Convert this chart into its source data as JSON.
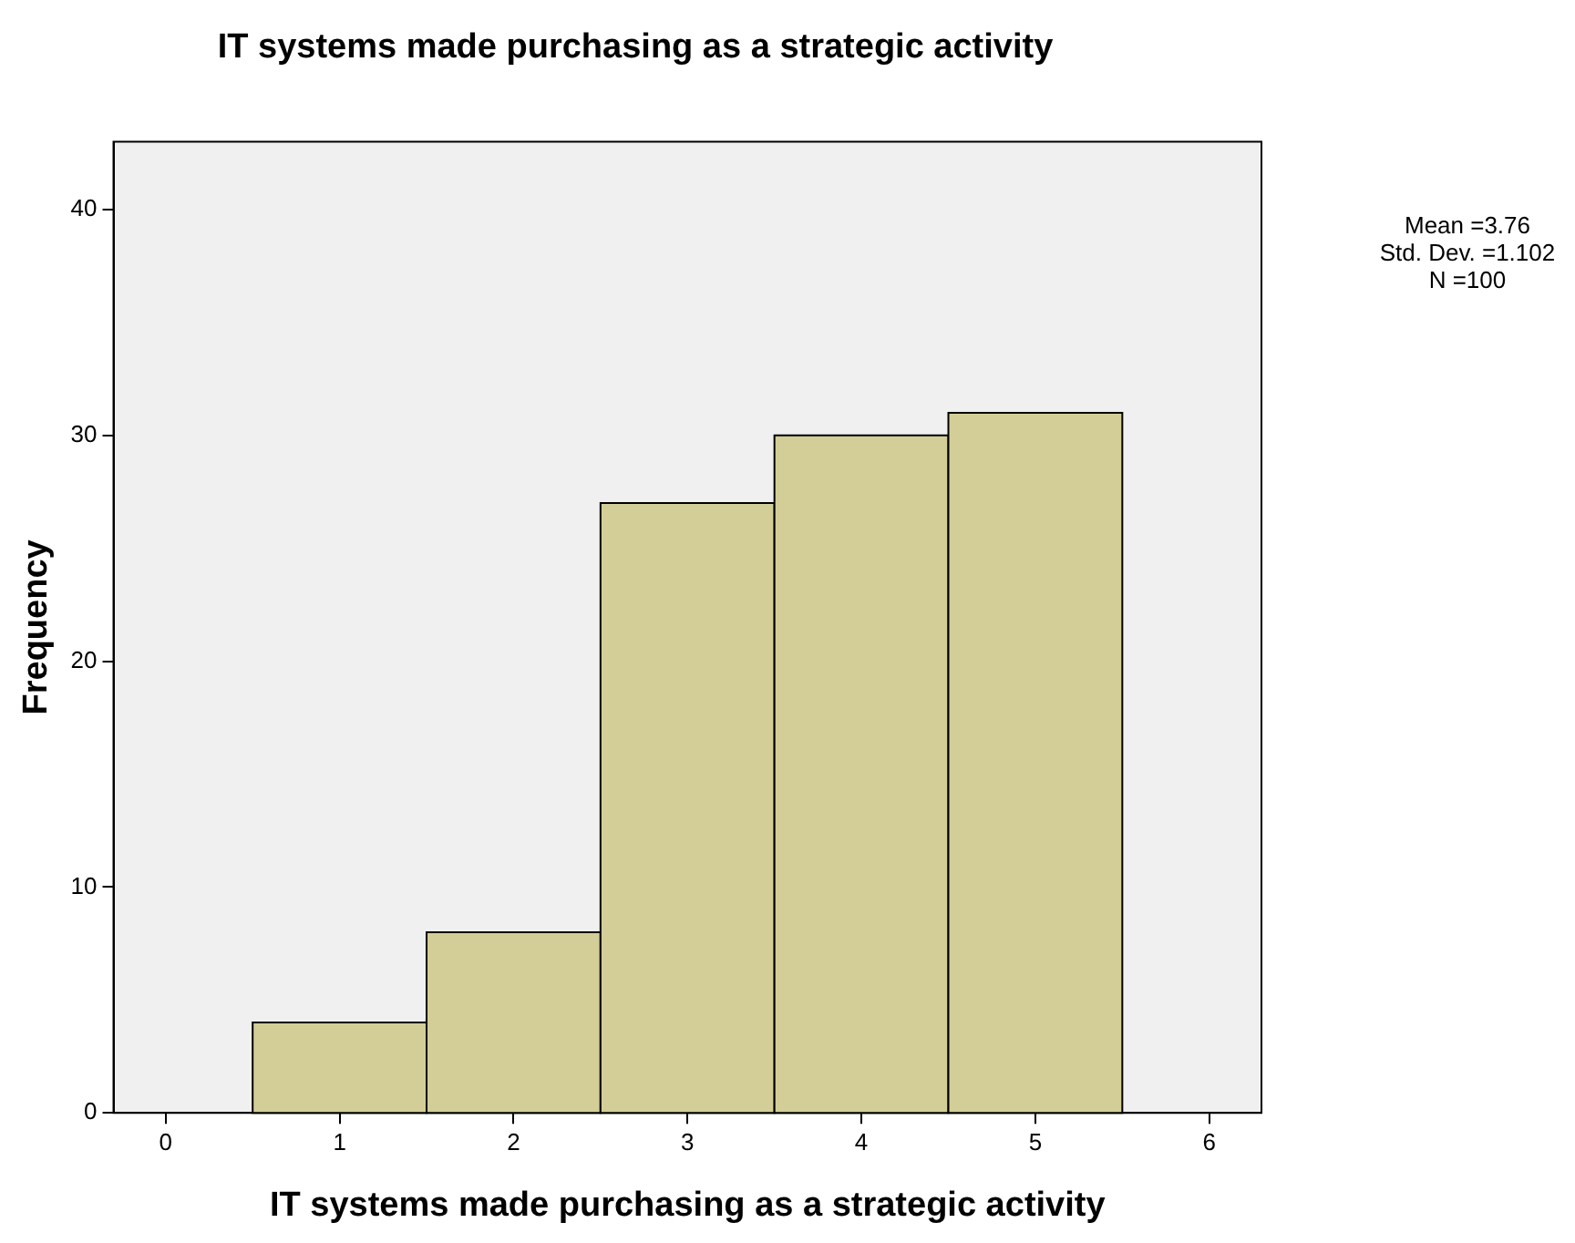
{
  "chart_data": {
    "type": "histogram",
    "title": "IT systems made purchasing as a strategic activity",
    "xlabel": "IT systems made purchasing as a strategic activity",
    "ylabel": "Frequency",
    "bins": [
      0.5,
      1.5,
      2.5,
      3.5,
      4.5,
      5.5
    ],
    "values": [
      4,
      8,
      27,
      30,
      31
    ],
    "color": "#d3ce97",
    "xlim": [
      -0.3,
      6.3
    ],
    "xticks": [
      0,
      1,
      2,
      3,
      4,
      5,
      6
    ],
    "ylim": [
      0,
      43
    ],
    "yticks": [
      0,
      10,
      20,
      30,
      40
    ],
    "grid": false,
    "annotations": [
      "Mean =3.76",
      "Std. Dev. =1.102",
      "N =100"
    ]
  }
}
